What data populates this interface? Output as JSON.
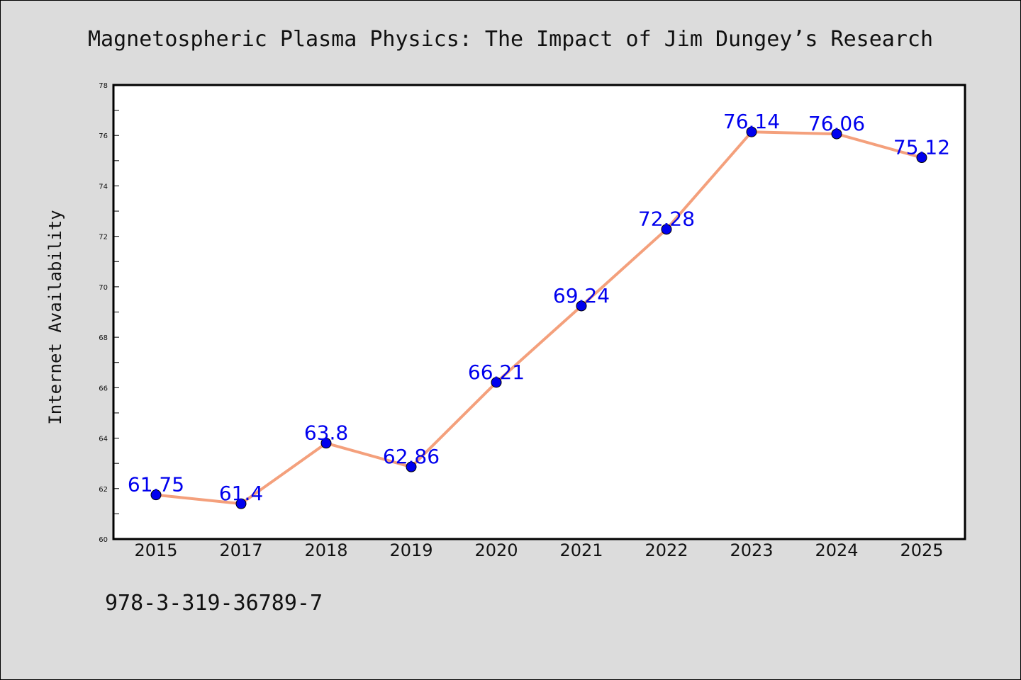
{
  "chart_data": {
    "type": "line",
    "title": "Magnetospheric Plasma Physics: The Impact of Jim Dungey’s Research",
    "xlabel": "",
    "ylabel": "Internet Availability",
    "categories": [
      "2015",
      "2017",
      "2018",
      "2019",
      "2020",
      "2021",
      "2022",
      "2023",
      "2024",
      "2025"
    ],
    "values": [
      61.75,
      61.4,
      63.8,
      62.86,
      66.21,
      69.24,
      72.28,
      76.14,
      76.06,
      75.12
    ],
    "data_labels": [
      "61.75",
      "61.4",
      "63.8",
      "62.86",
      "66.21",
      "69.24",
      "72.28",
      "76.14",
      "76.06",
      "75.12"
    ],
    "ylim": [
      60,
      78
    ],
    "yticks": [
      "60",
      "62",
      "64",
      "66",
      "68",
      "70",
      "72",
      "74",
      "76",
      "78"
    ],
    "grid": false,
    "legend": "none",
    "colors": {
      "line": "#f4a07c",
      "marker": "#0000ee",
      "data_label": "#0000ee"
    }
  },
  "footnote": "978-3-319-36789-7"
}
